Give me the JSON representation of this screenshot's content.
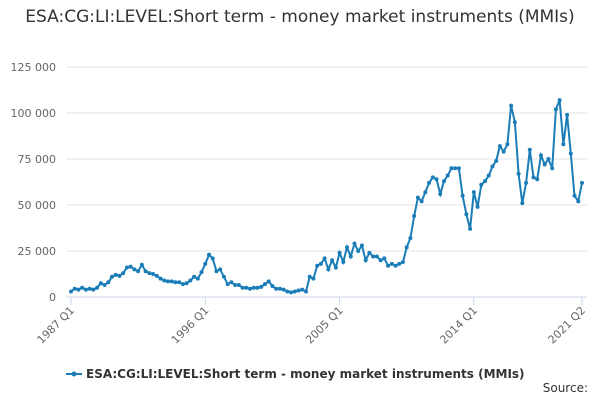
{
  "chart_data": {
    "type": "line",
    "title": "ESA:CG:LI:LEVEL:Short term - money market instruments (MMIs)",
    "categories": [
      "1987 Q1",
      null,
      null,
      null,
      null,
      null,
      null,
      null,
      null,
      null,
      null,
      null,
      null,
      null,
      null,
      null,
      null,
      null,
      null,
      null,
      null,
      null,
      null,
      null,
      null,
      null,
      null,
      null,
      null,
      null,
      null,
      null,
      null,
      null,
      null,
      null,
      "1996 Q1",
      null,
      null,
      null,
      null,
      null,
      null,
      null,
      null,
      null,
      null,
      null,
      null,
      null,
      null,
      null,
      null,
      null,
      null,
      null,
      null,
      null,
      null,
      null,
      null,
      null,
      null,
      null,
      null,
      null,
      null,
      null,
      null,
      null,
      null,
      null,
      "2005 Q1",
      null,
      null,
      null,
      null,
      null,
      null,
      null,
      null,
      null,
      null,
      null,
      null,
      null,
      null,
      null,
      null,
      null,
      null,
      null,
      null,
      null,
      null,
      null,
      null,
      null,
      null,
      null,
      null,
      null,
      null,
      null,
      null,
      null,
      null,
      null,
      "2014 Q1",
      null,
      null,
      null,
      null,
      null,
      null,
      null,
      null,
      null,
      null,
      null,
      null,
      null,
      null,
      null,
      null,
      null,
      null,
      null,
      null,
      null,
      null,
      null,
      null,
      null,
      null,
      null,
      null,
      "2021 Q2"
    ],
    "series": [
      {
        "name": "ESA:CG:LI:LEVEL:Short term - money market instruments (MMIs)",
        "color": "#1a7db8",
        "values": [
          3000,
          4500,
          4000,
          5000,
          4000,
          4500,
          4000,
          5000,
          7500,
          6500,
          8000,
          11000,
          12000,
          11500,
          13000,
          16000,
          16500,
          15000,
          14000,
          17500,
          14000,
          13000,
          12500,
          11500,
          10000,
          9000,
          8500,
          8500,
          8000,
          8000,
          7000,
          7500,
          9000,
          11000,
          10000,
          13500,
          18000,
          23000,
          21000,
          14000,
          15000,
          11000,
          7000,
          8000,
          6500,
          6500,
          5000,
          5000,
          4500,
          5000,
          5000,
          5500,
          7000,
          8500,
          6000,
          4500,
          4500,
          4000,
          3000,
          2500,
          3000,
          3500,
          4000,
          3000,
          11000,
          10000,
          17000,
          18000,
          21000,
          15000,
          20000,
          16000,
          24000,
          19000,
          27000,
          22000,
          29000,
          25000,
          28000,
          20000,
          24000,
          22000,
          22000,
          20000,
          21000,
          17000,
          18000,
          17000,
          18000,
          19000,
          27000,
          32000,
          44000,
          54000,
          52000,
          57000,
          62000,
          65000,
          64000,
          56000,
          63000,
          66000,
          70000,
          70000,
          70000,
          55000,
          45000,
          37000,
          57000,
          49000,
          61000,
          63000,
          66000,
          71000,
          74000,
          82000,
          79000,
          83000,
          104000,
          95000,
          67000,
          51000,
          62000,
          80000,
          65000,
          64000,
          77000,
          72000,
          75000,
          70000,
          102000,
          107000,
          83000,
          99000,
          78000,
          55000,
          52000,
          62000
        ]
      }
    ],
    "ylim": [
      0,
      125000
    ],
    "yticks": [
      0,
      {
        "value": 25000,
        "label": "25 000"
      },
      {
        "value": 50000,
        "label": "50 000"
      },
      {
        "value": 75000,
        "label": "75 000"
      },
      {
        "value": 100000,
        "label": "100 000"
      },
      {
        "value": 125000,
        "label": "125 000"
      }
    ],
    "grid": true,
    "source": "Source:"
  }
}
